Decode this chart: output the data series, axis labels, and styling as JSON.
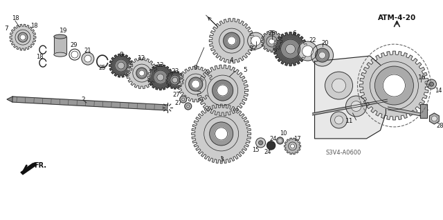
{
  "background_color": "#ffffff",
  "diagram_label": "ATM-4-20",
  "watermark": "S3V4-A0600",
  "fr_label": "FR.",
  "fig_width": 6.4,
  "fig_height": 3.19,
  "dpi": 100,
  "line_color": "#222222",
  "gear_face": "#d8d8d8",
  "gear_dark": "#888888",
  "gear_mid": "#aaaaaa"
}
